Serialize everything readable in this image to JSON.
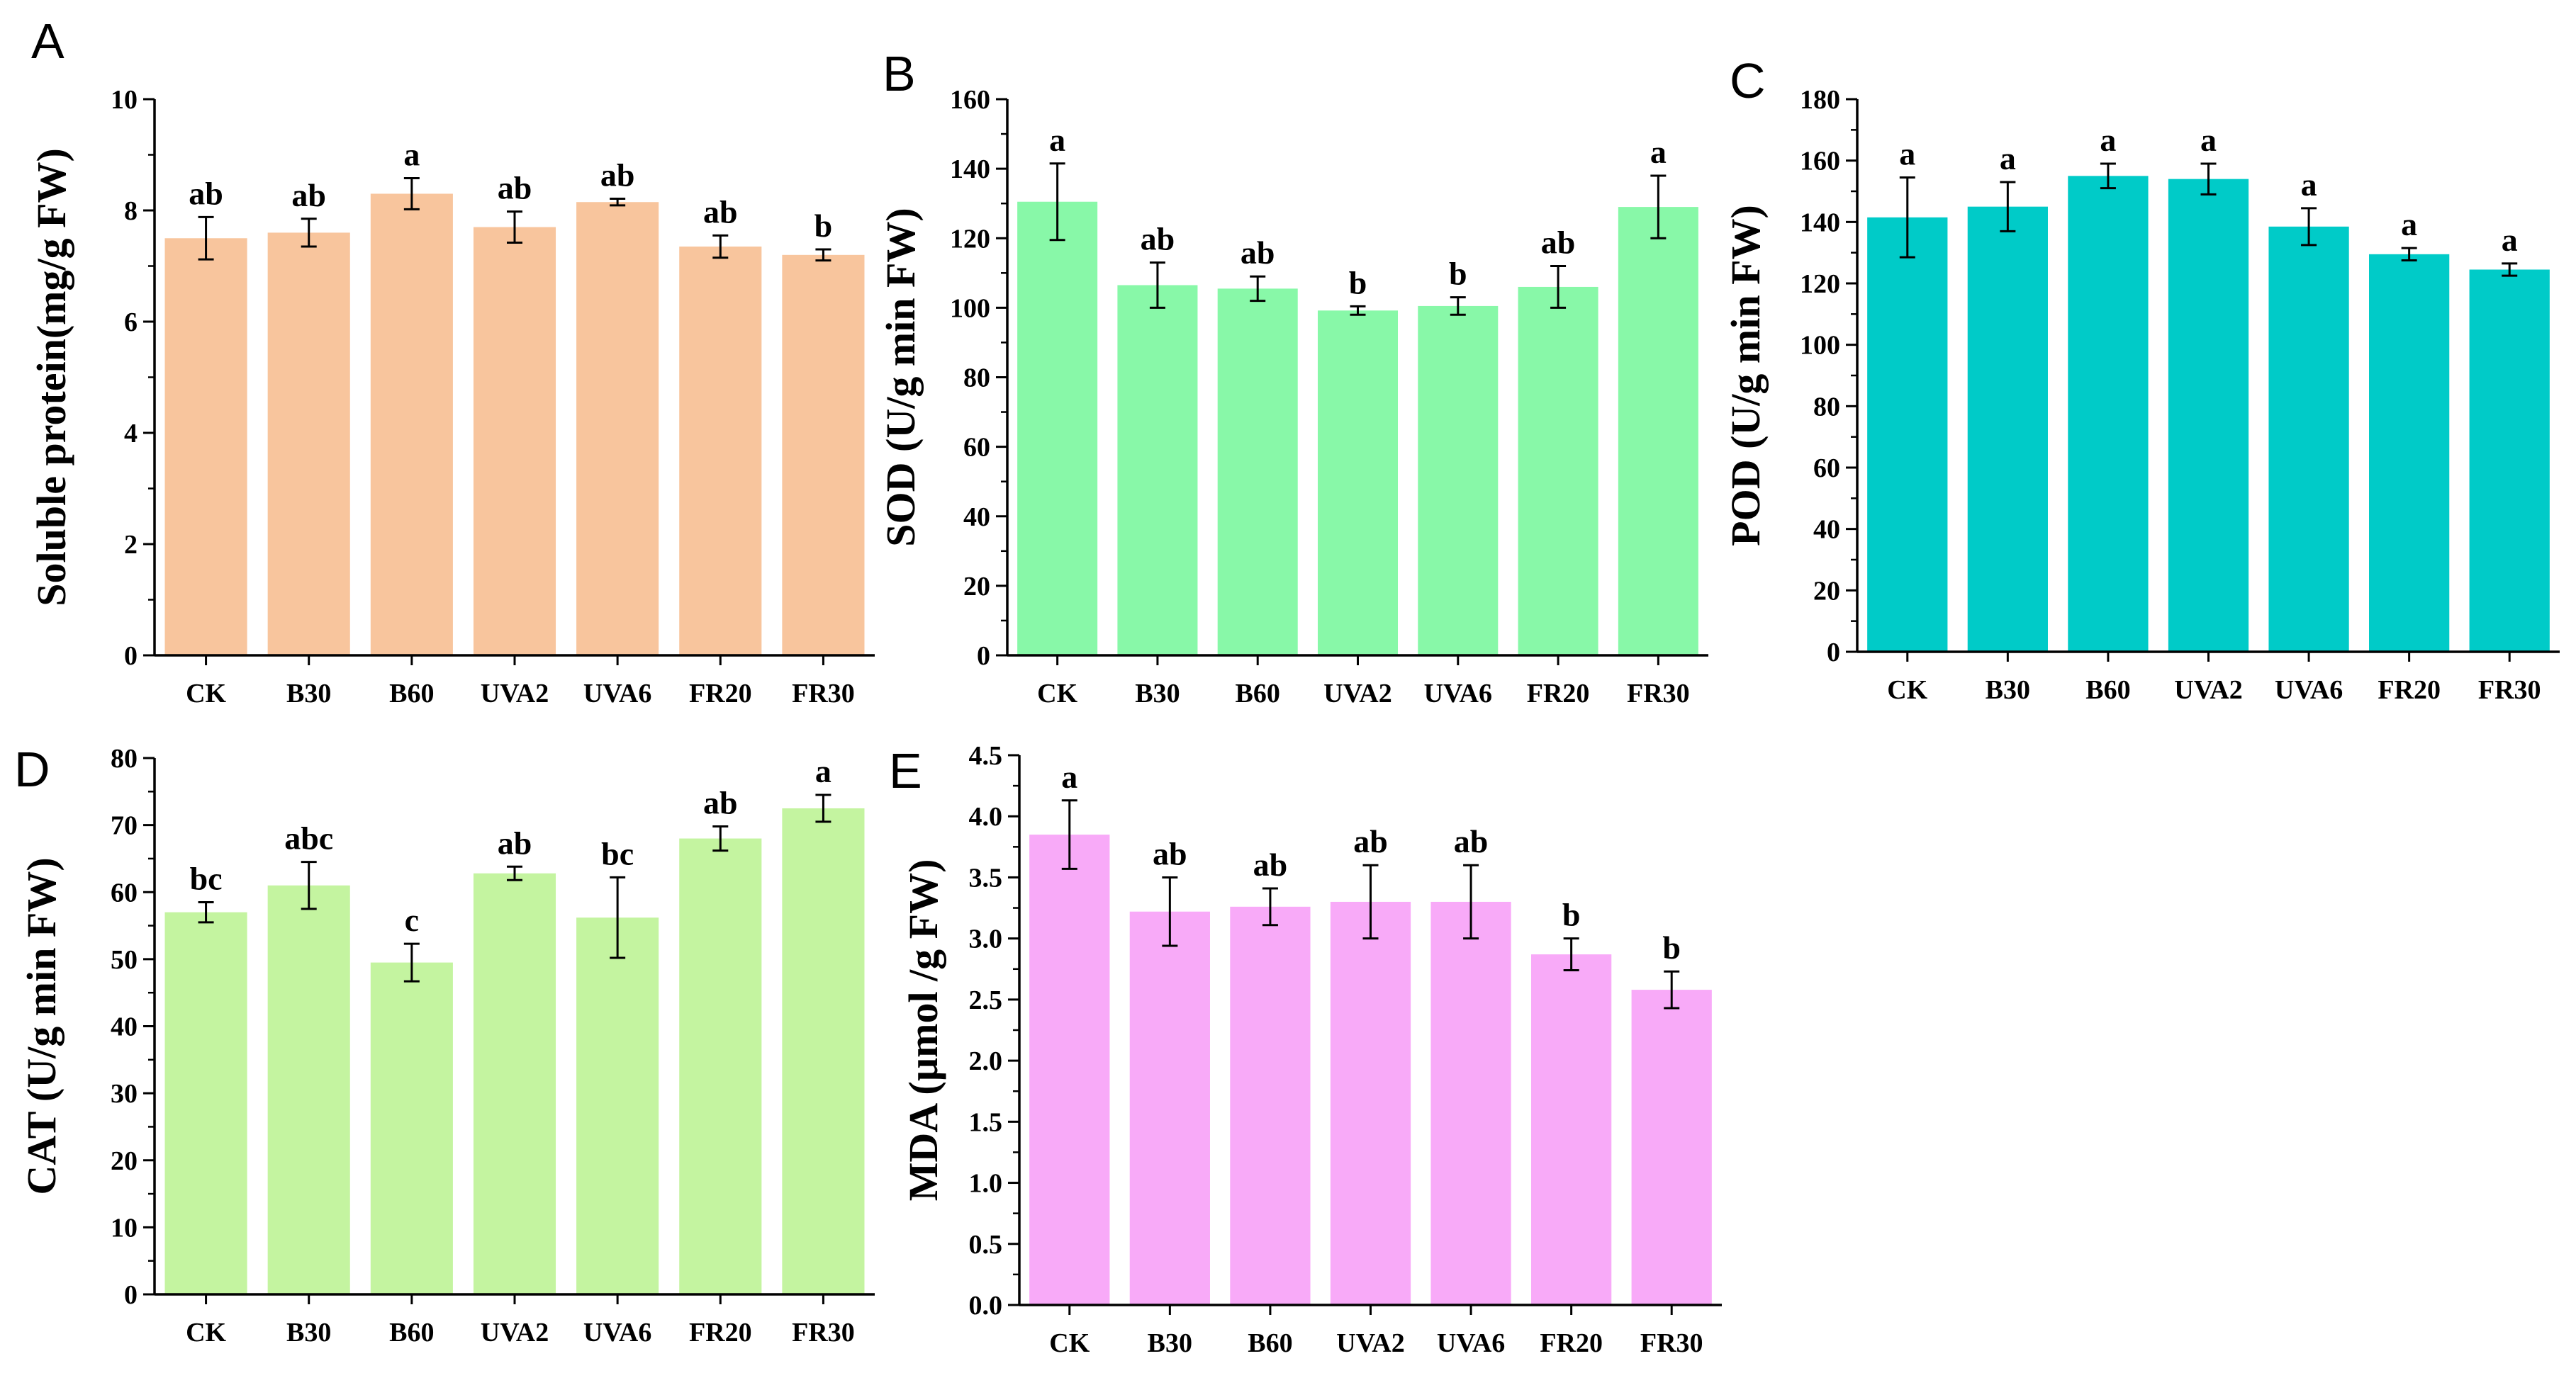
{
  "figure": {
    "description_free": true,
    "panel_count": 5
  },
  "chart_data": [
    {
      "type": "bar",
      "panel": "A",
      "ylabel": "Soluble protein(mg/g FW)",
      "categories": [
        "CK",
        "B30",
        "B60",
        "UVA2",
        "UVA6",
        "FR20",
        "FR30"
      ],
      "values": [
        7.5,
        7.6,
        8.3,
        7.7,
        8.15,
        7.35,
        7.2
      ],
      "errors": [
        0.38,
        0.25,
        0.28,
        0.28,
        0.06,
        0.2,
        0.1
      ],
      "letters": [
        "ab",
        "ab",
        "a",
        "ab",
        "ab",
        "ab",
        "b"
      ],
      "ylim": [
        0,
        10
      ],
      "yticks": [
        "0",
        "2",
        "4",
        "6",
        "8",
        "10"
      ],
      "color": "#f8c59d"
    },
    {
      "type": "bar",
      "panel": "B",
      "ylabel": "SOD (U/g min FW)",
      "categories": [
        "CK",
        "B30",
        "B60",
        "UVA2",
        "UVA6",
        "FR20",
        "FR30"
      ],
      "values": [
        130.5,
        106.5,
        105.5,
        99.2,
        100.5,
        106,
        129
      ],
      "errors": [
        11,
        6.5,
        3.5,
        1.2,
        2.5,
        6,
        9
      ],
      "letters": [
        "a",
        "ab",
        "ab",
        "b",
        "b",
        "ab",
        "a"
      ],
      "ylim": [
        0,
        160
      ],
      "yticks": [
        "0",
        "20",
        "40",
        "60",
        "80",
        "100",
        "120",
        "140",
        "160"
      ],
      "color": "#88f8a8"
    },
    {
      "type": "bar",
      "panel": "C",
      "ylabel": "POD (U/g min FW)",
      "categories": [
        "CK",
        "B30",
        "B60",
        "UVA2",
        "UVA6",
        "FR20",
        "FR30"
      ],
      "values": [
        141.5,
        145,
        155,
        154,
        138.5,
        129.5,
        124.5
      ],
      "errors": [
        13,
        8,
        4,
        5,
        6,
        2,
        2
      ],
      "letters": [
        "a",
        "a",
        "a",
        "a",
        "a",
        "a",
        "a"
      ],
      "ylim": [
        0,
        180
      ],
      "yticks": [
        "0",
        "20",
        "40",
        "60",
        "80",
        "100",
        "120",
        "140",
        "160",
        "180"
      ],
      "color": "#00cbc8"
    },
    {
      "type": "bar",
      "panel": "D",
      "ylabel": "CAT (U/g min FW)",
      "categories": [
        "CK",
        "B30",
        "B60",
        "UVA2",
        "UVA6",
        "FR20",
        "FR30"
      ],
      "values": [
        57,
        61,
        49.5,
        62.8,
        56.2,
        68,
        72.5
      ],
      "errors": [
        1.5,
        3.5,
        2.8,
        1.0,
        6.0,
        1.8,
        2.0
      ],
      "letters": [
        "bc",
        "abc",
        "c",
        "ab",
        "bc",
        "ab",
        "a"
      ],
      "ylim": [
        0,
        80
      ],
      "yticks": [
        "0",
        "10",
        "20",
        "30",
        "40",
        "50",
        "60",
        "70",
        "80"
      ],
      "color": "#c4f4a0"
    },
    {
      "type": "bar",
      "panel": "E",
      "ylabel": "MDA (µmol /g FW)",
      "categories": [
        "CK",
        "B30",
        "B60",
        "UVA2",
        "UVA6",
        "FR20",
        "FR30"
      ],
      "values": [
        3.85,
        3.22,
        3.26,
        3.3,
        3.3,
        2.87,
        2.58
      ],
      "errors": [
        0.28,
        0.28,
        0.15,
        0.3,
        0.3,
        0.13,
        0.15
      ],
      "letters": [
        "a",
        "ab",
        "ab",
        "ab",
        "ab",
        "b",
        "b"
      ],
      "ylim": [
        0,
        4.5
      ],
      "yticks": [
        "0.0",
        "0.5",
        "1.0",
        "1.5",
        "2.0",
        "2.5",
        "3.0",
        "3.5",
        "4.0",
        "4.5"
      ],
      "color": "#f8aaf8"
    }
  ]
}
